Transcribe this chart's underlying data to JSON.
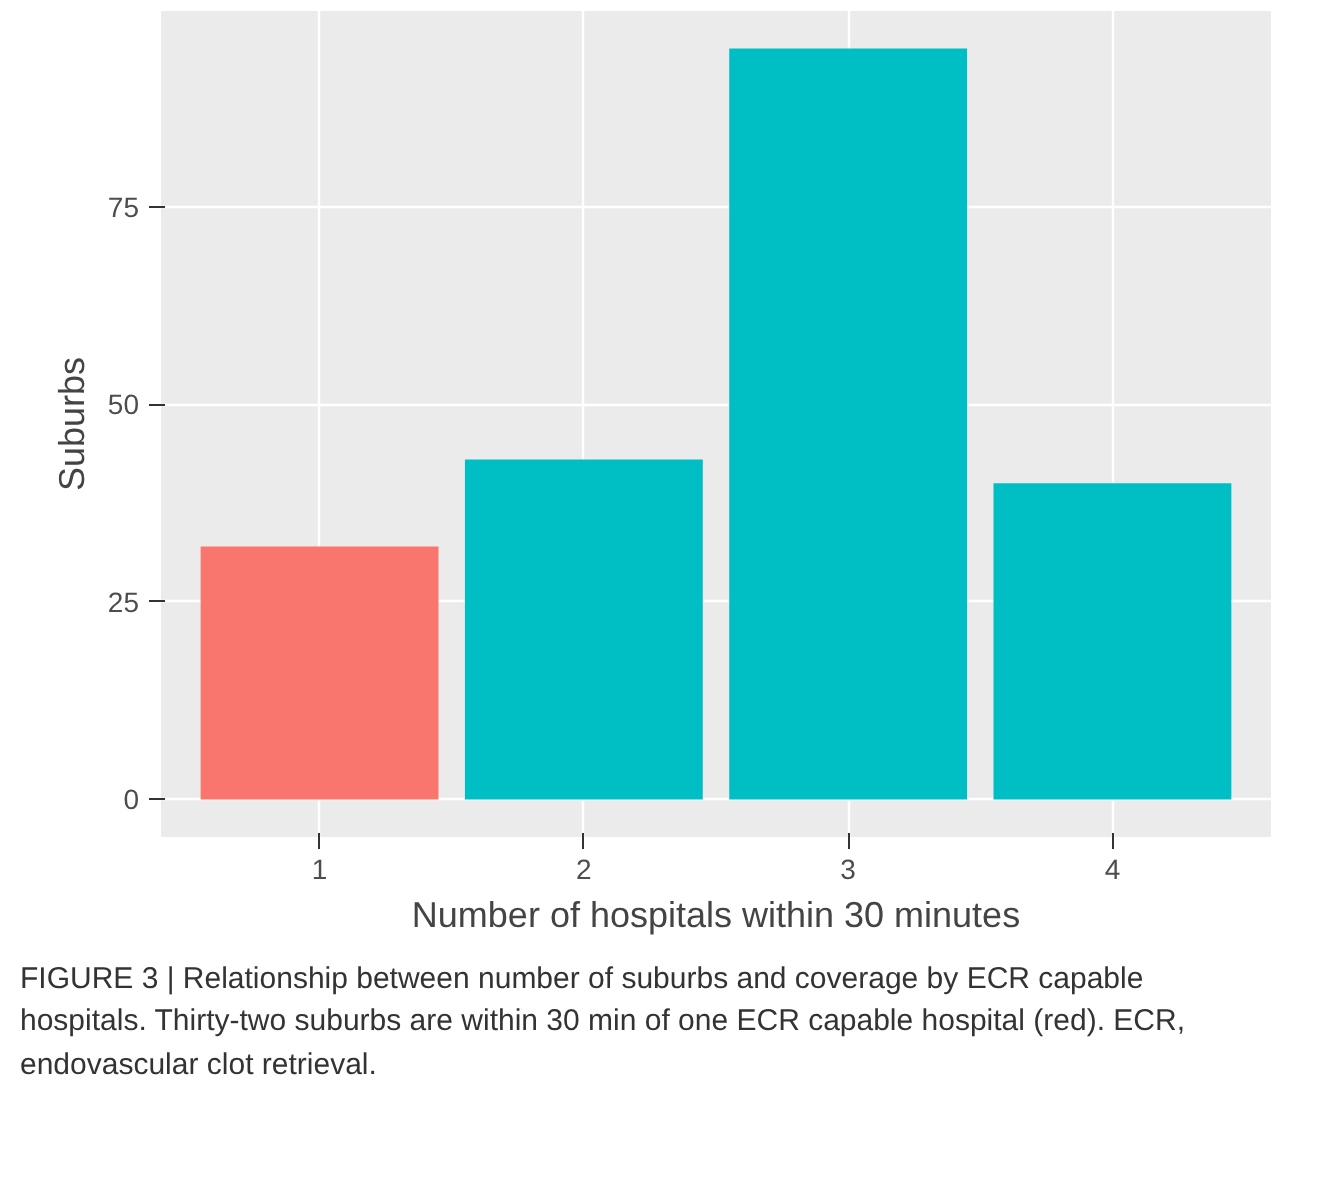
{
  "chart_data": {
    "type": "bar",
    "xlabel": "Number of hospitals within 30 minutes",
    "ylabel": "Suburbs",
    "categories": [
      "1",
      "2",
      "3",
      "4"
    ],
    "values": [
      32,
      43,
      95,
      40
    ],
    "colors": [
      "#f8766d",
      "#00bfc4",
      "#00bfc4",
      "#00bfc4"
    ],
    "ylim": [
      -4.75,
      99.75
    ],
    "yticks": [
      0,
      25,
      50,
      75
    ],
    "grid": true,
    "annotations": [
      "FIGURE 3 | Relationship between number of suburbs and coverage by ECR capable hospitals. Thirty-two suburbs are within 30 min of one ECR capable hospital (red). ECR, endovascular clot retrieval."
    ]
  }
}
